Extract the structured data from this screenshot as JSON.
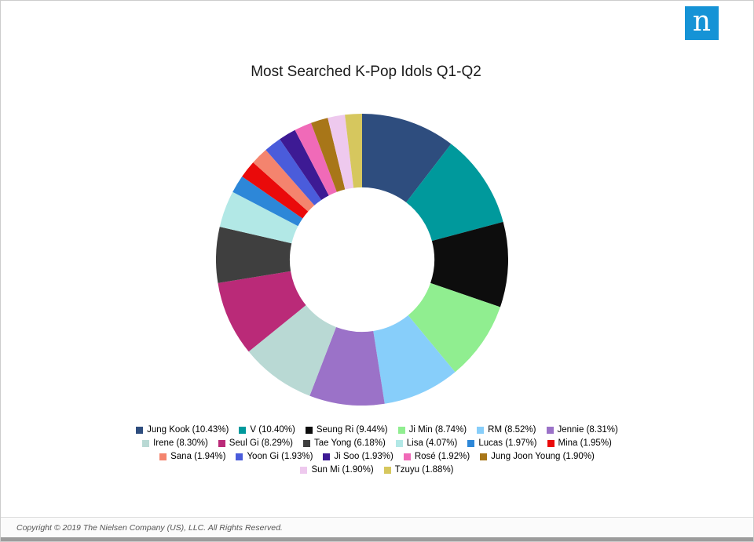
{
  "logo": {
    "letter": "n"
  },
  "chart": {
    "title": "Most Searched K-Pop Idols Q1-Q2"
  },
  "chart_data": {
    "type": "pie",
    "subtype": "donut",
    "title": "Most Searched K-Pop Idols Q1-Q2",
    "start_angle_deg": -90,
    "direction": "clockwise",
    "inner_radius_ratio": 0.495,
    "legend_position": "bottom",
    "legend_rows": [
      6,
      6,
      5,
      2
    ],
    "unit": "%",
    "series": [
      {
        "name": "Jung Kook",
        "value": 10.43,
        "color": "#2e4d7e"
      },
      {
        "name": "V",
        "value": 10.4,
        "color": "#00999c"
      },
      {
        "name": "Seung Ri",
        "value": 9.44,
        "color": "#0d0d0d"
      },
      {
        "name": "Ji Min",
        "value": 8.74,
        "color": "#90ee90"
      },
      {
        "name": "RM",
        "value": 8.52,
        "color": "#87cefa"
      },
      {
        "name": "Jennie",
        "value": 8.31,
        "color": "#9b72c8"
      },
      {
        "name": "Irene",
        "value": 8.3,
        "color": "#b9d9d4"
      },
      {
        "name": "Seul Gi",
        "value": 8.29,
        "color": "#ba2a78"
      },
      {
        "name": "Tae Yong",
        "value": 6.18,
        "color": "#3f3f3f"
      },
      {
        "name": "Lisa",
        "value": 4.07,
        "color": "#b2e8e6"
      },
      {
        "name": "Lucas",
        "value": 1.97,
        "color": "#2d87d8"
      },
      {
        "name": "Mina",
        "value": 1.95,
        "color": "#ea0a0a"
      },
      {
        "name": "Sana",
        "value": 1.94,
        "color": "#f4846e"
      },
      {
        "name": "Yoon Gi",
        "value": 1.93,
        "color": "#4a5cdb"
      },
      {
        "name": "Ji Soo",
        "value": 1.93,
        "color": "#3d1a94"
      },
      {
        "name": "Rosé",
        "value": 1.92,
        "color": "#f06ab8"
      },
      {
        "name": "Jung Joon Young",
        "value": 1.9,
        "color": "#a87618"
      },
      {
        "name": "Sun Mi",
        "value": 1.9,
        "color": "#eec9ee"
      },
      {
        "name": "Tzuyu",
        "value": 1.88,
        "color": "#d6c75e"
      }
    ]
  },
  "footer": {
    "copyright": "Copyright © 2019 The Nielsen Company (US), LLC. All Rights Reserved."
  }
}
